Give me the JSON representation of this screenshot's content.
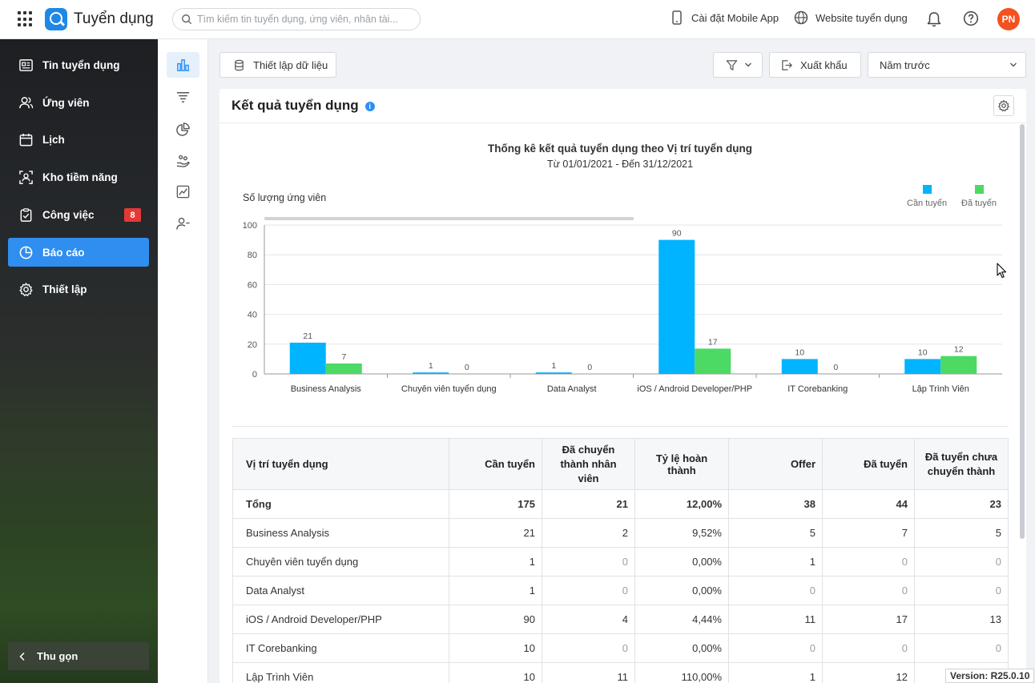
{
  "app": {
    "title": "Tuyển dụng",
    "avatar_initials": "PN"
  },
  "search": {
    "placeholder": "Tìm kiếm tin tuyển dụng, ứng viên, nhân tài..."
  },
  "topbar": {
    "mobile_app": "Cài đặt Mobile App",
    "website": "Website tuyển dụng"
  },
  "sidebar": {
    "items": [
      {
        "label": "Tin tuyển dụng",
        "icon": "newspaper-icon"
      },
      {
        "label": "Ứng viên",
        "icon": "users-icon"
      },
      {
        "label": "Lịch",
        "icon": "calendar-icon"
      },
      {
        "label": "Kho tiềm năng",
        "icon": "talent-pool-icon"
      },
      {
        "label": "Công việc",
        "icon": "clipboard-icon",
        "badge": "8"
      },
      {
        "label": "Báo cáo",
        "icon": "pie-chart-icon",
        "active": true
      },
      {
        "label": "Thiết lập",
        "icon": "gear-icon"
      }
    ],
    "collapse_label": "Thu gọn"
  },
  "toolbar": {
    "data_setup": "Thiết lập dữ liệu",
    "export": "Xuất khẩu",
    "period": "Năm trước"
  },
  "report": {
    "title": "Kết quả tuyển dụng"
  },
  "colors": {
    "accent": "#2f8ef0",
    "need": "#00b4ff",
    "hired": "#4cd964",
    "badge": "#e53935"
  },
  "chart_data": {
    "type": "bar",
    "title": "Thống kê kết quả tuyển dụng theo Vị trí tuyển dụng",
    "subtitle": "Từ 01/01/2021 - Đến 31/12/2021",
    "ylabel": "Số lượng ứng viên",
    "ylim": [
      0,
      100
    ],
    "yticks": [
      0,
      20,
      40,
      60,
      80,
      100
    ],
    "grid": true,
    "legend_position": "top-right",
    "categories": [
      "Business Analysis",
      "Chuyên viên tuyển dụng",
      "Data Analyst",
      "iOS / Android Developer/PHP",
      "IT Corebanking",
      "Lập Trình Viên"
    ],
    "series": [
      {
        "name": "Cần tuyển",
        "color": "#00b4ff",
        "values": [
          21,
          1,
          1,
          90,
          10,
          10
        ]
      },
      {
        "name": "Đã tuyển",
        "color": "#4cd964",
        "values": [
          7,
          0,
          0,
          17,
          0,
          12
        ]
      }
    ]
  },
  "table": {
    "headers": [
      "Vị trí tuyển dụng",
      "Cần tuyển",
      "Đã chuyển thành nhân viên",
      "Tỷ lệ hoàn thành",
      "Offer",
      "Đã tuyển",
      "Đã tuyển chưa chuyển thành"
    ],
    "total": [
      "Tổng",
      "175",
      "21",
      "12,00%",
      "38",
      "44",
      "23"
    ],
    "rows": [
      [
        "Business Analysis",
        "21",
        "2",
        "9,52%",
        "5",
        "7",
        "5"
      ],
      [
        "Chuyên viên tuyển dụng",
        "1",
        "0",
        "0,00%",
        "1",
        "0",
        "0"
      ],
      [
        "Data Analyst",
        "1",
        "0",
        "0,00%",
        "0",
        "0",
        "0"
      ],
      [
        "iOS / Android Developer/PHP",
        "90",
        "4",
        "4,44%",
        "11",
        "17",
        "13"
      ],
      [
        "IT Corebanking",
        "10",
        "0",
        "0,00%",
        "0",
        "0",
        "0"
      ],
      [
        "Lập Trình Viên",
        "10",
        "11",
        "110,00%",
        "1",
        "12",
        ""
      ]
    ]
  },
  "version": "Version: R25.0.10"
}
